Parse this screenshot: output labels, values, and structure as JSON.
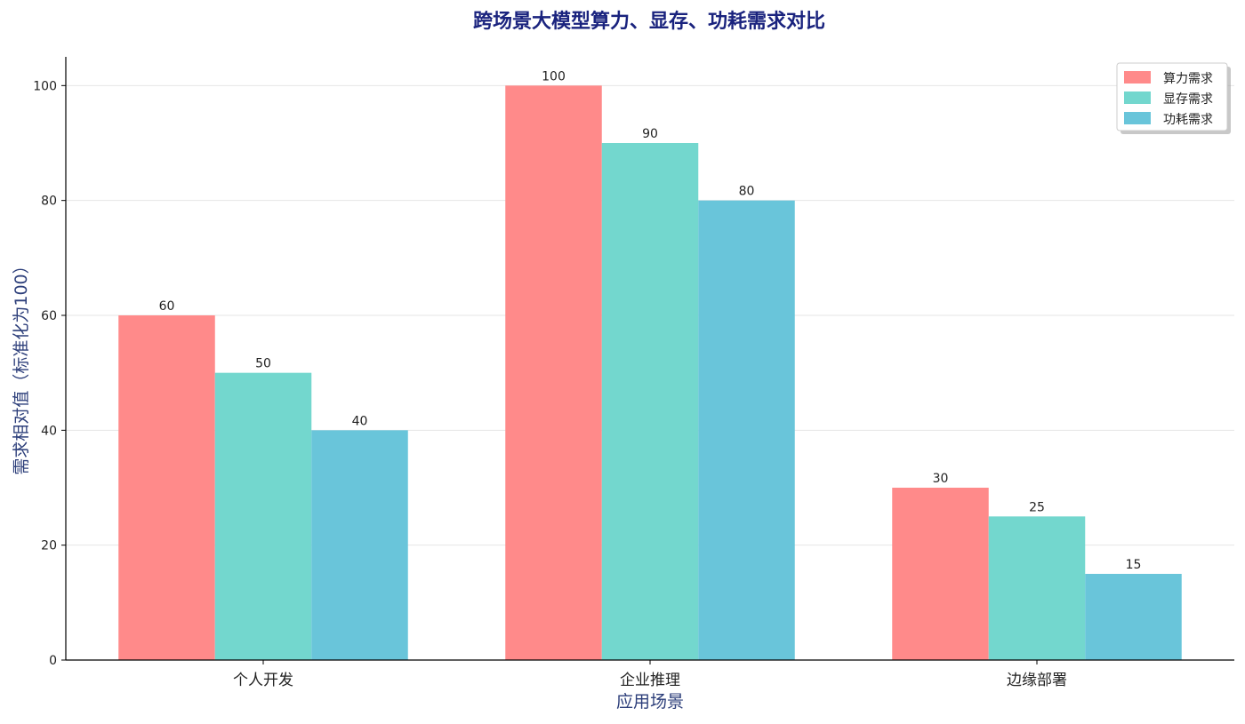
{
  "chart_data": {
    "type": "bar",
    "title": "跨场景大模型算力、显存、功耗需求对比",
    "xlabel": "应用场景",
    "ylabel": "需求相对值（标准化为100）",
    "categories": [
      "个人开发",
      "企业推理",
      "边缘部署"
    ],
    "series": [
      {
        "name": "算力需求",
        "values": [
          60,
          100,
          30
        ],
        "color": "#FF8A8A"
      },
      {
        "name": "显存需求",
        "values": [
          50,
          90,
          25
        ],
        "color": "#73D7CE"
      },
      {
        "name": "功耗需求",
        "values": [
          40,
          80,
          15
        ],
        "color": "#69C5DA"
      }
    ],
    "ylim": [
      0,
      105
    ],
    "yticks": [
      0,
      20,
      40,
      60,
      80,
      100
    ],
    "grid": true,
    "legend_position": "top-right",
    "title_color": "#1A237E",
    "axis_label_color": "#2C3E7A"
  }
}
